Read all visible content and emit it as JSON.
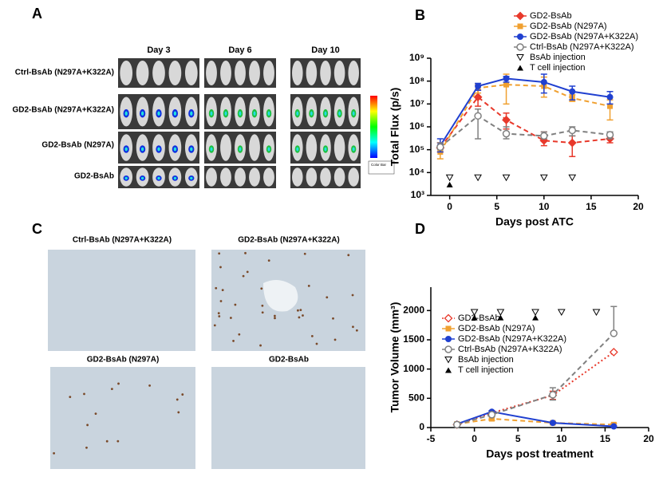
{
  "panels": {
    "A": {
      "label": "A",
      "days": [
        "Day 3",
        "Day 6",
        "Day 10"
      ],
      "rows": [
        "Ctrl-BsAb (N297A+K322A)",
        "GD2-BsAb (N297A+K322A)",
        "GD2-BsAb (N297A)",
        "GD2-BsAb"
      ],
      "colorbar": "Color Bar"
    },
    "C": {
      "label": "C",
      "titles": [
        "Ctrl-BsAb (N297A+K322A)",
        "GD2-BsAb (N297A+K322A)",
        "GD2-BsAb (N297A)",
        "GD2-BsAb"
      ]
    }
  },
  "chart_data": [
    {
      "type": "line",
      "panel_label": "B",
      "log": true,
      "xlabel": "Days post ATC",
      "ylabel": "Total Flux (p/s)",
      "x": [
        -1,
        3,
        6,
        10,
        13,
        17
      ],
      "xlim": [
        -2,
        20
      ],
      "xticks": [
        0,
        5,
        10,
        15,
        20
      ],
      "ylim": [
        1000,
        1000000000
      ],
      "yticks": [
        {
          "value": 1000,
          "label": "10³"
        },
        {
          "value": 10000,
          "label": "10⁴"
        },
        {
          "value": 100000,
          "label": "10⁵"
        },
        {
          "value": 1000000,
          "label": "10⁶"
        },
        {
          "value": 10000000,
          "label": "10⁷"
        },
        {
          "value": 100000000,
          "label": "10⁸"
        },
        {
          "value": 1000000000,
          "label": "10⁹"
        }
      ],
      "legend": "upper right",
      "series": [
        {
          "name": "GD2-BsAb",
          "color": "#e8392b",
          "marker": "diamond",
          "dash": "dashed",
          "values": [
            120000,
            20000000,
            2000000,
            250000,
            200000,
            300000
          ],
          "lower": [
            80000,
            8000000,
            800000,
            150000,
            50000,
            200000
          ],
          "upper": [
            200000,
            40000000,
            4000000,
            600000,
            400000,
            500000
          ]
        },
        {
          "name": "GD2-BsAb (N297A)",
          "color": "#f0a030",
          "marker": "square",
          "dash": "dashed",
          "values": [
            80000,
            50000000,
            70000000,
            60000000,
            18000000,
            8000000
          ],
          "lower": [
            40000,
            30000000,
            10000000,
            20000000,
            13000000,
            2000000
          ],
          "upper": [
            120000,
            70000000,
            200000000,
            150000000,
            25000000,
            15000000
          ]
        },
        {
          "name": "GD2-BsAb (N297A+K322A)",
          "color": "#2040d0",
          "marker": "circle",
          "dash": "solid",
          "values": [
            150000,
            60000000,
            130000000,
            90000000,
            35000000,
            20000000
          ],
          "lower": [
            80000,
            40000000,
            90000000,
            30000000,
            15000000,
            10000000
          ],
          "upper": [
            300000,
            80000000,
            160000000,
            200000000,
            60000000,
            35000000
          ]
        },
        {
          "name": "Ctrl-BsAb (N297A+K322A)",
          "color": "#808080",
          "marker": "open-circle",
          "dash": "dashed",
          "values": [
            130000,
            3000000,
            500000,
            400000,
            700000,
            450000
          ],
          "lower": [
            100000,
            300000,
            300000,
            300000,
            400000,
            300000
          ],
          "upper": [
            200000,
            6000000,
            1000000,
            600000,
            1000000,
            600000
          ]
        },
        {
          "name": "BsAb injection",
          "color": "#000000",
          "marker": "triangle-down-open",
          "x": [
            0,
            3,
            6,
            10,
            13
          ],
          "values": [
            6000,
            6000,
            6000,
            6000,
            6000
          ]
        },
        {
          "name": "T cell injection",
          "color": "#000000",
          "marker": "triangle-up",
          "x": [
            0
          ],
          "values": [
            3000
          ]
        }
      ]
    },
    {
      "type": "line",
      "panel_label": "D",
      "log": false,
      "xlabel": "Days post treatment",
      "ylabel": "Tumor Volume (mm³)",
      "x": [
        -2,
        2,
        9,
        16
      ],
      "xlim": [
        -5,
        20
      ],
      "xticks": [
        -5,
        0,
        5,
        10,
        15,
        20
      ],
      "ylim": [
        0,
        2400
      ],
      "yticks": [
        0,
        500,
        1000,
        1500,
        2000
      ],
      "legend": "upper left",
      "series": [
        {
          "name": "GD2-BsAb",
          "color": "#e8392b",
          "marker": "open-diamond",
          "dash": "dotted",
          "values": [
            50,
            250,
            550,
            1290
          ],
          "lower": [
            40,
            220,
            480,
            1290
          ],
          "upper": [
            60,
            280,
            620,
            1290
          ]
        },
        {
          "name": "GD2-BsAb (N297A)",
          "color": "#f0a030",
          "marker": "square",
          "dash": "dashed",
          "values": [
            60,
            150,
            80,
            50
          ],
          "lower": [
            50,
            120,
            60,
            30
          ],
          "upper": [
            70,
            180,
            100,
            70
          ]
        },
        {
          "name": "GD2-BsAb (N297A+K322A)",
          "color": "#2040d0",
          "marker": "circle",
          "dash": "solid",
          "values": [
            60,
            270,
            80,
            20
          ],
          "lower": [
            50,
            250,
            70,
            15
          ],
          "upper": [
            70,
            290,
            90,
            25
          ]
        },
        {
          "name": "Ctrl-BsAb (N297A+K322A)",
          "color": "#808080",
          "marker": "open-circle",
          "dash": "dashed",
          "values": [
            50,
            220,
            560,
            1610
          ],
          "lower": [
            40,
            190,
            470,
            1610
          ],
          "upper": [
            60,
            250,
            680,
            2070
          ]
        },
        {
          "name": "BsAb injection",
          "color": "#000000",
          "marker": "triangle-down-open",
          "x": [
            0,
            3,
            7,
            10,
            14
          ],
          "values": [
            1970,
            1970,
            1970,
            1970,
            1970
          ]
        },
        {
          "name": "T cell injection",
          "color": "#000000",
          "marker": "triangle-up",
          "x": [
            0,
            3,
            7
          ],
          "values": [
            1880,
            1880,
            1880
          ]
        }
      ]
    }
  ]
}
